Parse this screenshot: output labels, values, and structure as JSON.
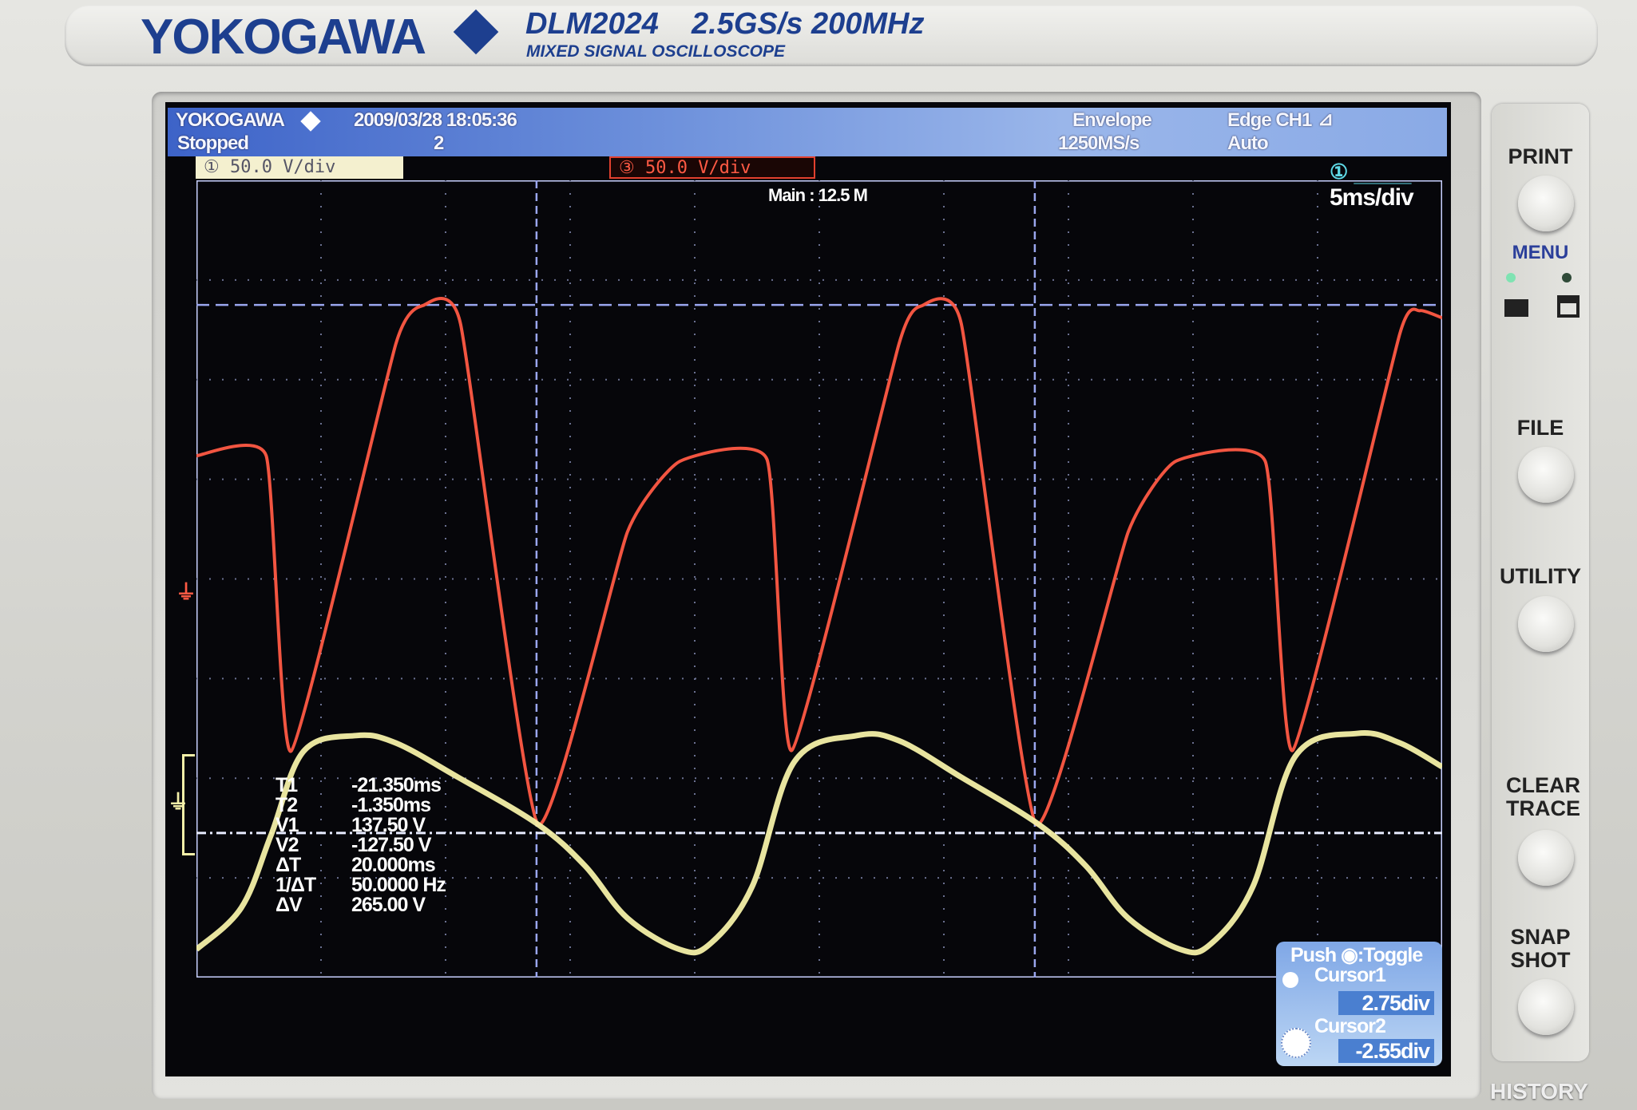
{
  "bezel": {
    "brand": "YOKOGAWA",
    "model": "DLM2024",
    "spec": "2.5GS/s 200MHz",
    "subtitle": "MIXED SIGNAL OSCILLOSCOPE",
    "bottom_label": "HISTORY"
  },
  "header": {
    "logo": "YOKOGAWA",
    "datetime": "2009/03/28 18:05:36",
    "status": "Stopped",
    "count": "2",
    "acq_mode": "Envelope",
    "sample_rate": "1250MS/s",
    "trigger": "Edge CH1",
    "trigger_mode": "Auto"
  },
  "channels": [
    {
      "label": "① 50.0 V/div",
      "color": "#f4f0a8",
      "offset_div": -2.64
    },
    {
      "label": "③ 50.0 V/div",
      "color": "#ff5a44",
      "offset_div": 0
    }
  ],
  "main_record": "Main : 12.5 M",
  "timebase": "5ms/div",
  "readout": [
    {
      "label": "T1",
      "value": "-21.350ms"
    },
    {
      "label": "T2",
      "value": "-1.350ms"
    },
    {
      "label": "V1",
      "value": "137.50 V"
    },
    {
      "label": "V2",
      "value": "-127.50 V"
    },
    {
      "label": "ΔT",
      "value": "20.000ms"
    },
    {
      "label": "1/ΔT",
      "value": "50.0000 Hz"
    },
    {
      "label": "ΔV",
      "value": "265.00 V"
    }
  ],
  "cursor_panel": {
    "hint": "Push ◉:Toggle",
    "cursor1_label": "Cursor1",
    "cursor1_value": "2.75div",
    "cursor2_label": "Cursor2",
    "cursor2_value": "-2.55div"
  },
  "right_panel": {
    "print": "PRINT",
    "menu": "MENU",
    "file": "FILE",
    "utility": "UTILITY",
    "clear_trace": "CLEAR TRACE",
    "snap_shot": "SNAP SHOT"
  },
  "chart_data": {
    "type": "line",
    "xlabel": "",
    "ylabel": "",
    "xlim": [
      -35,
      15
    ],
    "ylim_div": [
      -4,
      4
    ],
    "volts_per_div": 50,
    "grid": true,
    "cursors": {
      "t1_ms": -21.35,
      "t2_ms": -1.35,
      "v1_div": 2.75,
      "v2_div": -2.55
    },
    "series": [
      {
        "channel": 3,
        "color": "#ff5a44",
        "x": [
          -35,
          -32.2,
          -31.2,
          -27,
          -25.9,
          -24.4,
          -21.3,
          -17.7,
          -15.6,
          -12.1,
          -11.1,
          -6.8,
          -5.9,
          -4.3,
          -1.3,
          2.4,
          4.3,
          7.9,
          9,
          13.3,
          14.1,
          15
        ],
        "y": [
          61.8,
          61.8,
          -86.4,
          117.8,
          137.2,
          128,
          -123,
          23.6,
          59,
          60,
          -86,
          118,
          137,
          128,
          -123,
          23.6,
          59,
          59,
          -86,
          123,
          134.6,
          131
        ]
      },
      {
        "channel": 1,
        "color": "#f4f0a8",
        "x": [
          -35,
          -33.2,
          -32,
          -30.7,
          -28.6,
          -27,
          -24.5,
          -21.3,
          -19.4,
          -17.7,
          -15.6,
          -14.4,
          -12.7,
          -11,
          -8.5,
          -6.8,
          -4.3,
          -1.2,
          0.7,
          2.4,
          4.5,
          5.7,
          7.4,
          9.1,
          11.6,
          13.3,
          15
        ],
        "y": [
          -53.9,
          -33,
          3.7,
          45.5,
          53.4,
          49.7,
          32.5,
          8.9,
          -12,
          -38.2,
          -53.9,
          -51.3,
          -22.5,
          40.3,
          53.4,
          50.8,
          32.5,
          8.9,
          -12,
          -38.2,
          -53.9,
          -51.3,
          -22.5,
          42.9,
          54.5,
          49.7,
          37.7
        ]
      }
    ]
  }
}
